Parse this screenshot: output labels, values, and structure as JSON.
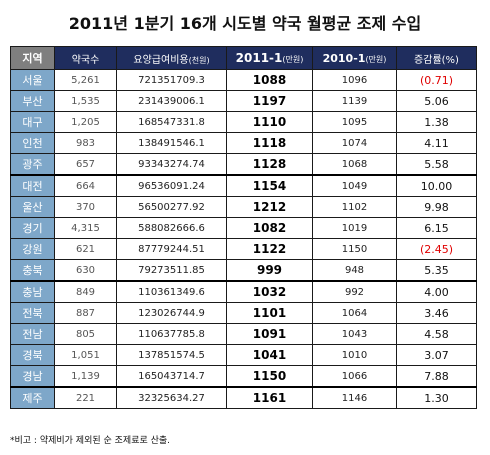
{
  "title": "2011년 1분기 16개 시도별 약국 월평균 조제 수입",
  "headers": {
    "region": "지역",
    "pharmacies": "약국수",
    "payment": "요양급여비용",
    "payment_unit": "(천원)",
    "y2011": "2011-1",
    "y2011_unit": "(만원)",
    "y2010": "2010-1",
    "y2010_unit": "(만원)",
    "rate": "증감률(%)"
  },
  "rows": [
    {
      "region": "서울",
      "pharmacies": "5,261",
      "payment": "721351709.3",
      "y2011": "1088",
      "y2010": "1096",
      "rate": "(0.71)",
      "negative": true
    },
    {
      "region": "부산",
      "pharmacies": "1,535",
      "payment": "231439006.1",
      "y2011": "1197",
      "y2010": "1139",
      "rate": "5.06",
      "negative": false
    },
    {
      "region": "대구",
      "pharmacies": "1,205",
      "payment": "168547331.8",
      "y2011": "1110",
      "y2010": "1095",
      "rate": "1.38",
      "negative": false
    },
    {
      "region": "인천",
      "pharmacies": "983",
      "payment": "138491546.1",
      "y2011": "1118",
      "y2010": "1074",
      "rate": "4.11",
      "negative": false
    },
    {
      "region": "광주",
      "pharmacies": "657",
      "payment": "93343274.74",
      "y2011": "1128",
      "y2010": "1068",
      "rate": "5.58",
      "negative": false
    },
    {
      "region": "대전",
      "pharmacies": "664",
      "payment": "96536091.24",
      "y2011": "1154",
      "y2010": "1049",
      "rate": "10.00",
      "negative": false
    },
    {
      "region": "울산",
      "pharmacies": "370",
      "payment": "56500277.92",
      "y2011": "1212",
      "y2010": "1102",
      "rate": "9.98",
      "negative": false
    },
    {
      "region": "경기",
      "pharmacies": "4,315",
      "payment": "588082666.6",
      "y2011": "1082",
      "y2010": "1019",
      "rate": "6.15",
      "negative": false
    },
    {
      "region": "강원",
      "pharmacies": "621",
      "payment": "87779244.51",
      "y2011": "1122",
      "y2010": "1150",
      "rate": "(2.45)",
      "negative": true
    },
    {
      "region": "충북",
      "pharmacies": "630",
      "payment": "79273511.85",
      "y2011": "999",
      "y2010": "948",
      "rate": "5.35",
      "negative": false
    },
    {
      "region": "충남",
      "pharmacies": "849",
      "payment": "110361349.6",
      "y2011": "1032",
      "y2010": "992",
      "rate": "4.00",
      "negative": false
    },
    {
      "region": "전북",
      "pharmacies": "887",
      "payment": "123026744.9",
      "y2011": "1101",
      "y2010": "1064",
      "rate": "3.46",
      "negative": false
    },
    {
      "region": "전남",
      "pharmacies": "805",
      "payment": "110637785.8",
      "y2011": "1091",
      "y2010": "1043",
      "rate": "4.58",
      "negative": false
    },
    {
      "region": "경북",
      "pharmacies": "1,051",
      "payment": "137851574.5",
      "y2011": "1041",
      "y2010": "1010",
      "rate": "3.07",
      "negative": false
    },
    {
      "region": "경남",
      "pharmacies": "1,139",
      "payment": "165043714.7",
      "y2011": "1150",
      "y2010": "1066",
      "rate": "7.88",
      "negative": false
    },
    {
      "region": "제주",
      "pharmacies": "221",
      "payment": "32325634.27",
      "y2011": "1161",
      "y2010": "1146",
      "rate": "1.30",
      "negative": false
    }
  ],
  "footnote": "*비고 : 약제비가 제외된 순 조제료로 산출.",
  "colors": {
    "header_navy": "#1f2d5e",
    "header_gray": "#7f7f7f",
    "region_blue": "#7ea7c9",
    "negative_red": "#e00000"
  }
}
